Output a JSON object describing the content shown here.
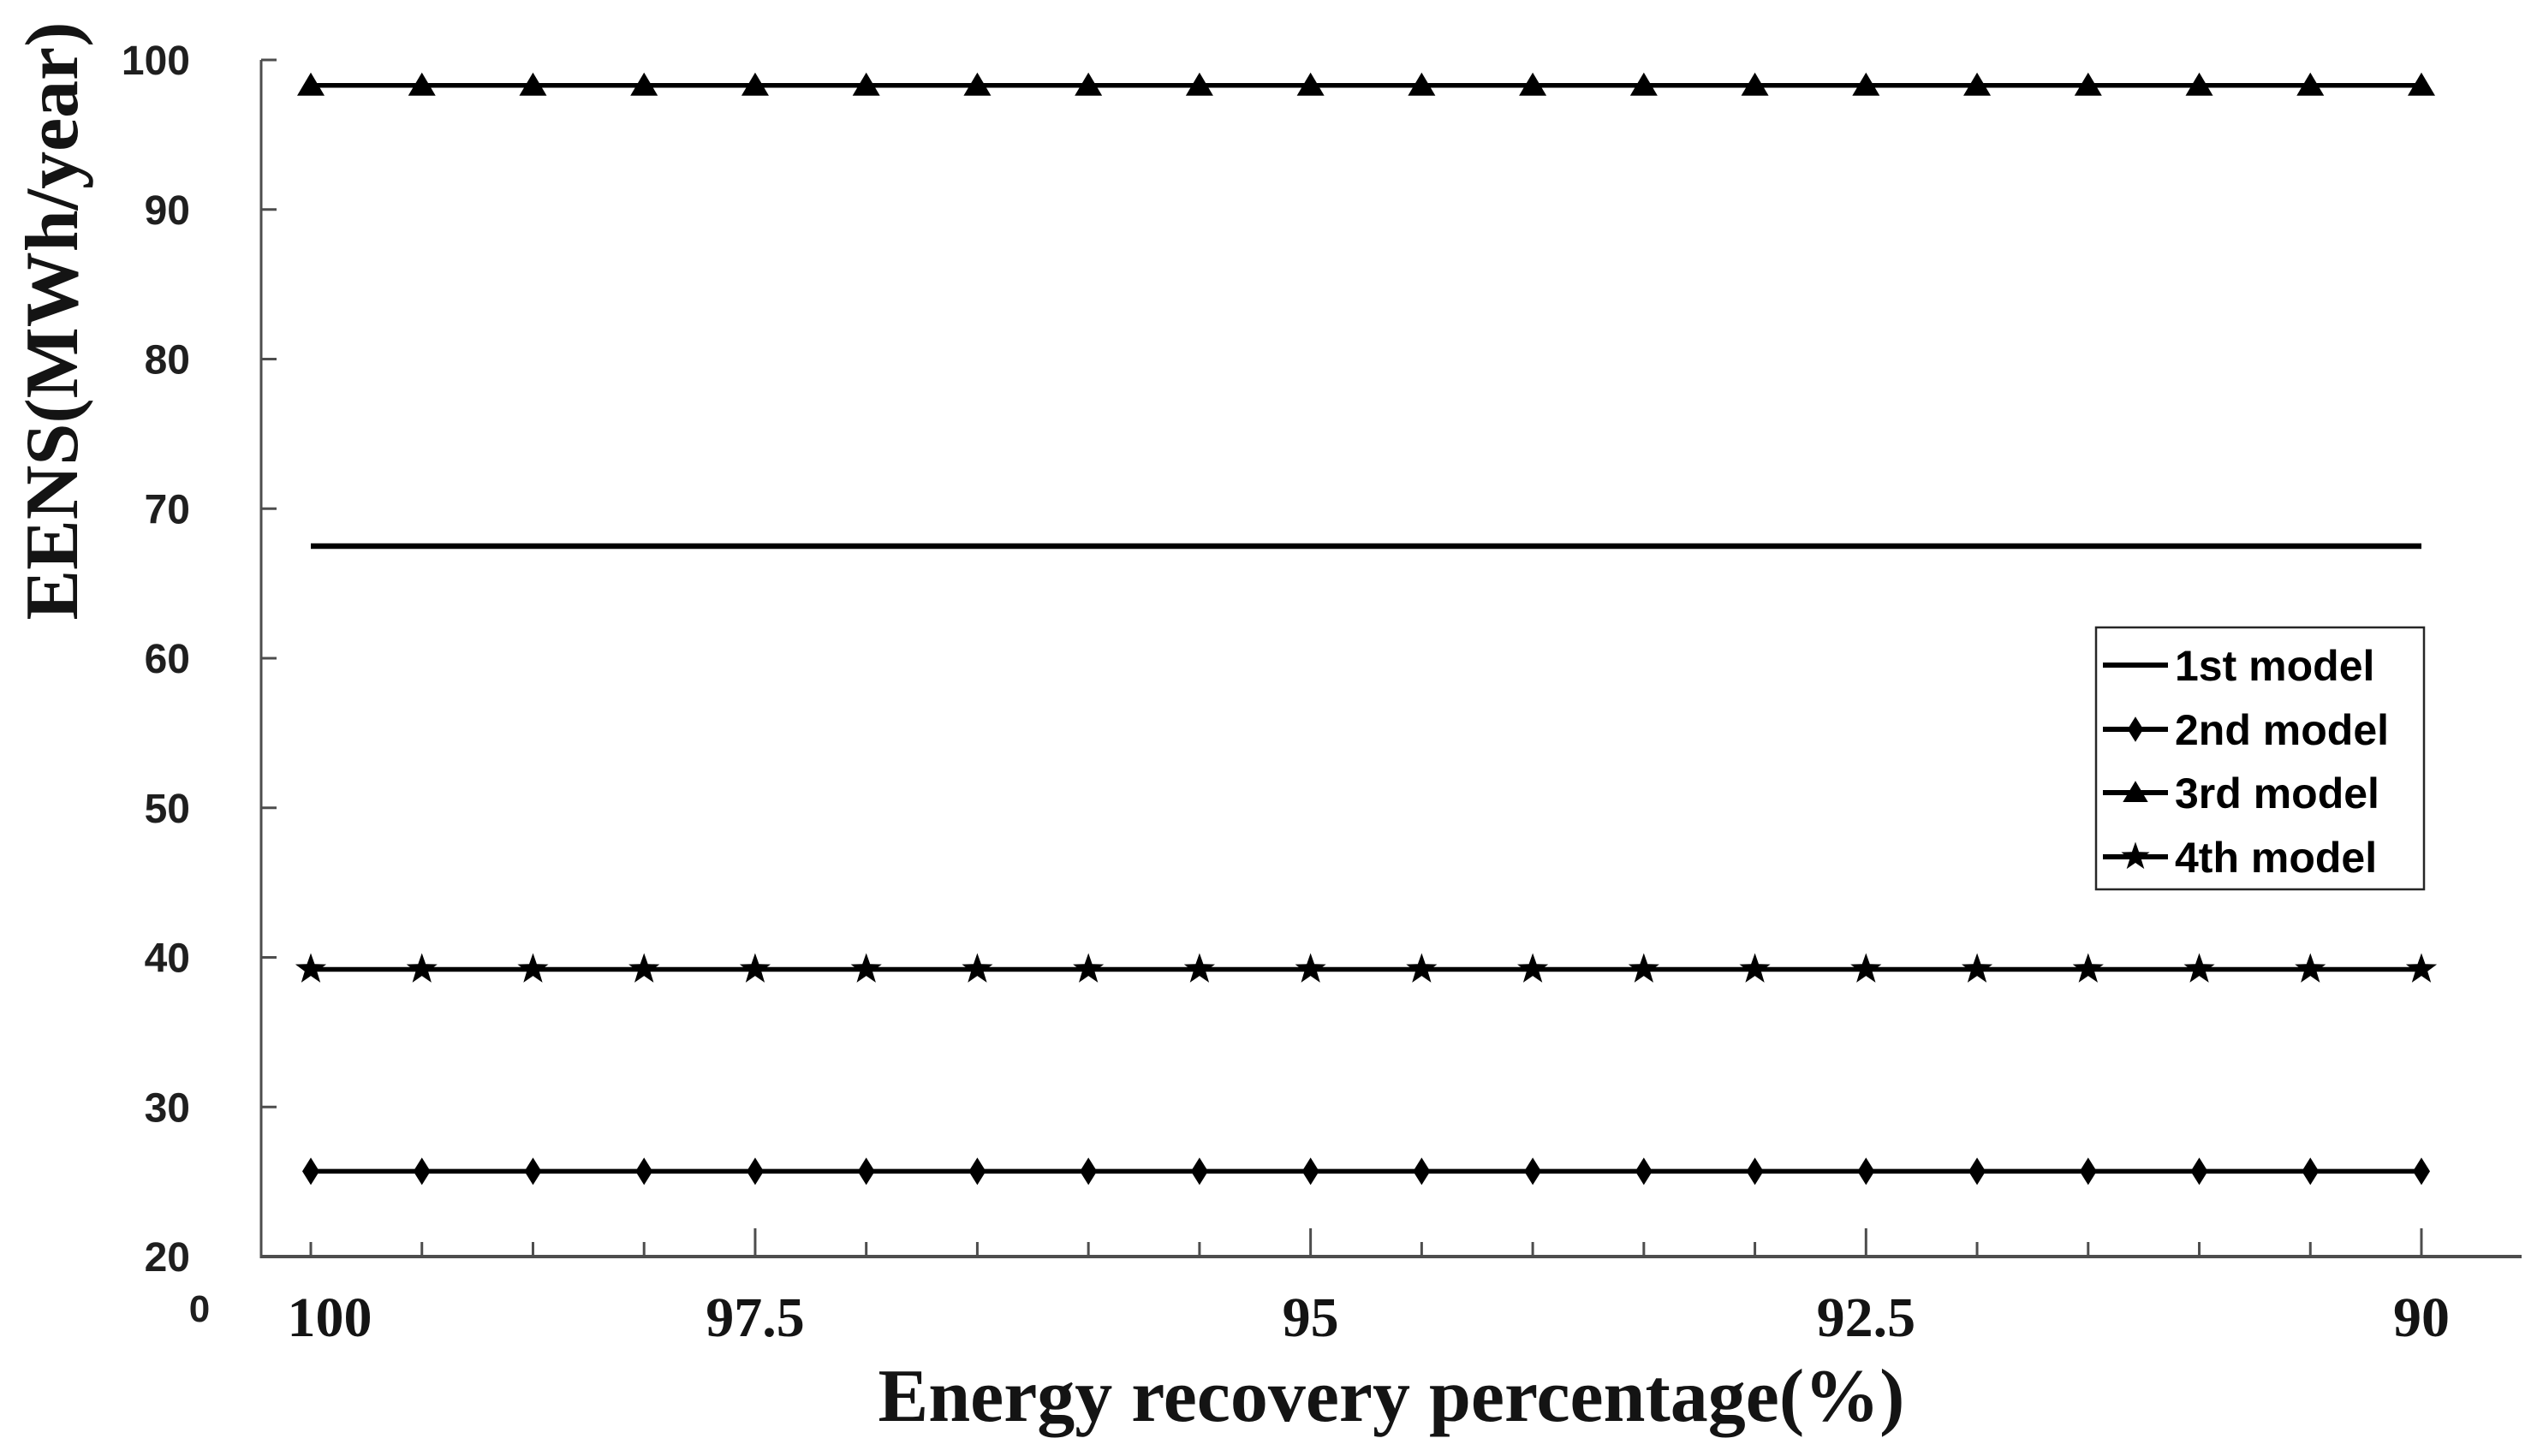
{
  "chart_data": {
    "type": "line",
    "title": "",
    "xlabel": "Energy recovery percentage(%)",
    "ylabel": "EENS(MWh/year)",
    "x_axis": {
      "direction": "reversed",
      "range": [
        100,
        90
      ],
      "n_points": 20,
      "tick_labels": [
        "100",
        "97.5",
        "95",
        "92.5",
        "90"
      ],
      "tick_label_point_indices": [
        0,
        4,
        9,
        14,
        19
      ],
      "origin_label": "0"
    },
    "y_axis": {
      "range": [
        20,
        100
      ],
      "ticks": [
        20,
        30,
        40,
        50,
        60,
        70,
        80,
        90,
        100
      ]
    },
    "series": [
      {
        "name": "1st model",
        "marker": "none",
        "constant_value": 67.5,
        "n_points": 20
      },
      {
        "name": "2nd model",
        "marker": "diamond",
        "constant_value": 25.7,
        "n_points": 20
      },
      {
        "name": "3rd model",
        "marker": "triangle",
        "constant_value": 98.3,
        "n_points": 20
      },
      {
        "name": "4th model",
        "marker": "star",
        "constant_value": 39.2,
        "n_points": 20
      }
    ],
    "legend": {
      "entries": [
        "1st model",
        "2nd model",
        "3rd model",
        "4th model"
      ],
      "position": "middle-right",
      "border": true
    },
    "grid": false,
    "colors": {
      "series": "#000000",
      "axis": "#4d4d4d",
      "y_tick_label": "#1f1f1f",
      "x_tick_label": "#141414",
      "axis_title": "#141414",
      "legend_border": "#262626",
      "background": "#ffffff"
    }
  }
}
